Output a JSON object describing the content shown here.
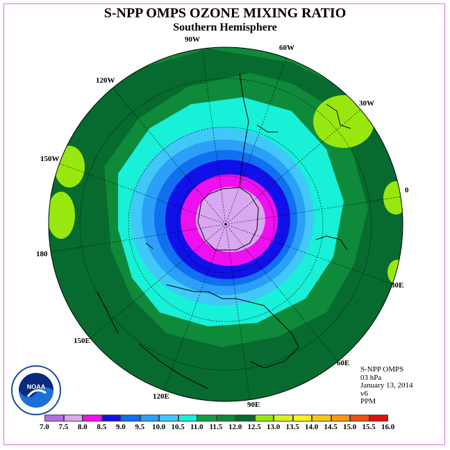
{
  "title": "S-NPP OMPS OZONE MIXING RATIO",
  "subtitle": "Southern Hemisphere",
  "longitude_labels": [
    "90W",
    "60W",
    "30W",
    "0",
    "30E",
    "60E",
    "90E",
    "120E",
    "150E",
    "180",
    "150W",
    "120W"
  ],
  "info": {
    "instrument": "S-NPP OMPS",
    "level": "03 hPa",
    "date": "January 13, 2014",
    "version": "v6",
    "units": "PPM"
  },
  "logo_text": "NOAA",
  "colorbar": {
    "ticks": [
      "7.0",
      "7.5",
      "8.0",
      "8.5",
      "9.0",
      "9.5",
      "10.0",
      "10.5",
      "11.0",
      "11.5",
      "12.0",
      "12.5",
      "13.0",
      "13.5",
      "14.0",
      "14.5",
      "15.0",
      "15.5",
      "16.0"
    ],
    "colors": [
      "#b070e0",
      "#d8a8f0",
      "#ee10ee",
      "#1010e8",
      "#1070f0",
      "#2aa0f8",
      "#40c8f8",
      "#18f0d8",
      "#10a040",
      "#0e8a3a",
      "#076a2e",
      "#98e810",
      "#d8f020",
      "#f8f020",
      "#f8c810",
      "#f89810",
      "#f05010",
      "#e01010",
      "#8a5030"
    ]
  },
  "map_data": {
    "projection": "south-polar-stereographic",
    "contour_levels_ppm": [
      7.0,
      7.5,
      8.0,
      8.5,
      9.0,
      9.5,
      10.0,
      10.5,
      11.0,
      11.5,
      12.0,
      12.5
    ],
    "minimum_region": "over Antarctica (<8.0 ppm)",
    "maximum_region": "mid-latitudes (12.0–12.5 ppm patches)"
  }
}
